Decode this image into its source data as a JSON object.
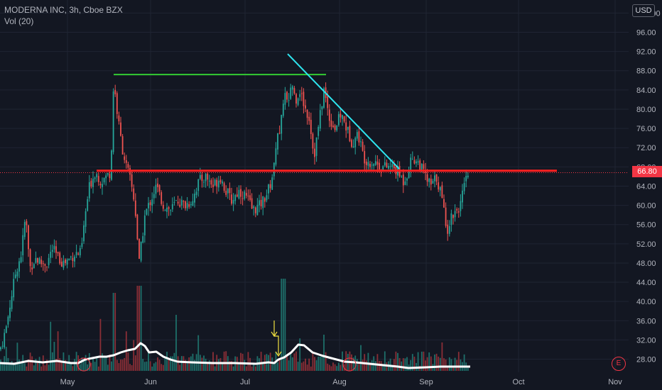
{
  "header": {
    "symbol_line": "MODERNA INC, 3h, Cboe BZX",
    "indicator_line": "Vol (20)",
    "currency_button": "USD"
  },
  "last_price_label": "66.80",
  "earnings_badge": "E",
  "colors": {
    "background": "#131722",
    "grid": "#1f2433",
    "up": "#26a69a",
    "down": "#ef5350",
    "up_volume": "#1e6f6a",
    "down_volume": "#8a2e36",
    "resistance_line": "#ff2020",
    "green_line": "#33cc33",
    "trend_line": "#2ee6f0",
    "volume_ma": "#ffffff",
    "annotation_arrow": "#f0e040"
  },
  "chart_data": {
    "type": "candlestick",
    "x_axis_labels": [
      "May",
      "Jun",
      "Jul",
      "Aug",
      "Sep",
      "Oct",
      "Nov"
    ],
    "y_axis_labels": [
      "28.00",
      "32.00",
      "36.00",
      "40.00",
      "44.00",
      "48.00",
      "52.00",
      "56.00",
      "60.00",
      "64.00",
      "68.00",
      "72.00",
      "76.00",
      "80.00",
      "84.00",
      "88.00",
      "92.00",
      "96.00",
      "100.00"
    ],
    "ylim": [
      26,
      100
    ],
    "price_waypoints": [
      [
        0,
        30
      ],
      [
        8,
        34
      ],
      [
        16,
        41
      ],
      [
        22,
        46
      ],
      [
        30,
        50
      ],
      [
        36,
        58
      ],
      [
        42,
        47
      ],
      [
        50,
        49
      ],
      [
        58,
        48
      ],
      [
        66,
        48
      ],
      [
        74,
        51
      ],
      [
        82,
        49
      ],
      [
        90,
        48
      ],
      [
        98,
        49
      ],
      [
        106,
        50
      ],
      [
        114,
        50
      ],
      [
        120,
        58
      ],
      [
        126,
        64
      ],
      [
        134,
        67
      ],
      [
        142,
        65
      ],
      [
        150,
        66
      ],
      [
        156,
        67
      ],
      [
        160,
        86
      ],
      [
        166,
        78
      ],
      [
        172,
        72
      ],
      [
        178,
        68
      ],
      [
        184,
        65
      ],
      [
        190,
        60
      ],
      [
        196,
        48
      ],
      [
        204,
        58
      ],
      [
        212,
        61
      ],
      [
        220,
        64
      ],
      [
        230,
        60
      ],
      [
        240,
        59
      ],
      [
        250,
        61
      ],
      [
        260,
        60
      ],
      [
        270,
        61
      ],
      [
        280,
        65
      ],
      [
        290,
        66
      ],
      [
        300,
        64
      ],
      [
        310,
        66
      ],
      [
        318,
        63
      ],
      [
        326,
        61
      ],
      [
        336,
        63
      ],
      [
        346,
        62
      ],
      [
        356,
        59
      ],
      [
        366,
        60
      ],
      [
        374,
        62
      ],
      [
        380,
        64
      ],
      [
        386,
        68
      ],
      [
        390,
        76
      ],
      [
        394,
        74
      ],
      [
        400,
        84
      ],
      [
        406,
        80
      ],
      [
        410,
        86
      ],
      [
        416,
        82
      ],
      [
        422,
        84
      ],
      [
        430,
        80
      ],
      [
        436,
        78
      ],
      [
        442,
        70
      ],
      [
        448,
        76
      ],
      [
        456,
        84
      ],
      [
        464,
        78
      ],
      [
        472,
        76
      ],
      [
        480,
        79
      ],
      [
        488,
        76
      ],
      [
        496,
        73
      ],
      [
        504,
        75
      ],
      [
        512,
        70
      ],
      [
        520,
        69
      ],
      [
        528,
        69
      ],
      [
        536,
        68
      ],
      [
        544,
        68
      ],
      [
        552,
        68
      ],
      [
        560,
        67
      ],
      [
        568,
        65
      ],
      [
        574,
        67
      ],
      [
        580,
        70
      ],
      [
        588,
        69
      ],
      [
        596,
        67
      ],
      [
        602,
        65
      ],
      [
        608,
        64
      ],
      [
        614,
        66
      ],
      [
        620,
        63
      ],
      [
        626,
        58
      ],
      [
        630,
        55
      ],
      [
        636,
        58
      ],
      [
        642,
        59
      ],
      [
        648,
        60
      ],
      [
        654,
        64
      ],
      [
        660,
        67
      ]
    ],
    "lines": [
      {
        "name": "",
        "color": "#ff2020",
        "from": [
          136,
          67.2
        ],
        "to": [
          784,
          67.2
        ]
      },
      {
        "name": "",
        "color": "#33cc33",
        "from": [
          160,
          87.2
        ],
        "to": [
          459,
          87.2
        ]
      },
      {
        "name": "",
        "color": "#2ee6f0",
        "from": [
          405,
          91.5
        ],
        "to": [
          562,
          67.6
        ]
      }
    ],
    "volume_ma": [
      [
        0,
        512
      ],
      [
        20,
        513
      ],
      [
        40,
        509
      ],
      [
        60,
        511
      ],
      [
        80,
        509
      ],
      [
        100,
        512
      ],
      [
        110,
        512
      ],
      [
        120,
        507
      ],
      [
        130,
        505
      ],
      [
        140,
        503
      ],
      [
        150,
        503
      ],
      [
        160,
        501
      ],
      [
        170,
        497
      ],
      [
        180,
        494
      ],
      [
        190,
        492
      ],
      [
        198,
        484
      ],
      [
        204,
        488
      ],
      [
        210,
        497
      ],
      [
        220,
        496
      ],
      [
        230,
        503
      ],
      [
        240,
        507
      ],
      [
        250,
        510
      ],
      [
        270,
        511
      ],
      [
        300,
        512
      ],
      [
        330,
        512
      ],
      [
        360,
        513
      ],
      [
        378,
        511
      ],
      [
        386,
        512
      ],
      [
        392,
        507
      ],
      [
        400,
        504
      ],
      [
        410,
        497
      ],
      [
        420,
        486
      ],
      [
        428,
        487
      ],
      [
        440,
        497
      ],
      [
        455,
        502
      ],
      [
        470,
        506
      ],
      [
        485,
        510
      ],
      [
        500,
        511
      ],
      [
        520,
        513
      ],
      [
        540,
        515
      ],
      [
        560,
        517
      ],
      [
        575,
        519
      ],
      [
        600,
        518
      ],
      [
        620,
        517
      ],
      [
        640,
        517
      ],
      [
        662,
        517
      ]
    ]
  }
}
